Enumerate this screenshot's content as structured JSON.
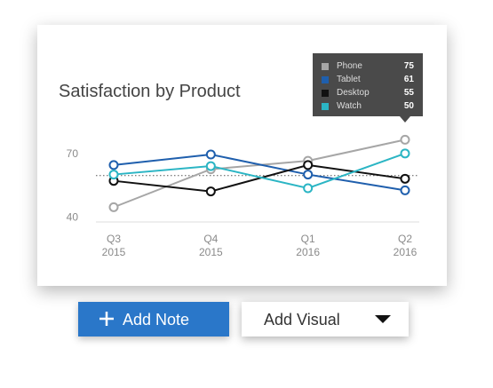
{
  "chart_data": {
    "type": "line",
    "title": "Satisfaction by Product",
    "categories": [
      "Q3\n2015",
      "Q4\n2015",
      "Q1\n2016",
      "Q2\n2016"
    ],
    "series": [
      {
        "name": "Phone",
        "color": "#a6a6a6",
        "values": [
          45,
          63,
          67,
          77
        ]
      },
      {
        "name": "Tablet",
        "color": "#1f5fad",
        "values": [
          65,
          70,
          60.5,
          53
        ]
      },
      {
        "name": "Desktop",
        "color": "#111111",
        "values": [
          57.5,
          52.5,
          65,
          58.5
        ]
      },
      {
        "name": "Watch",
        "color": "#2bb5c4",
        "values": [
          60.5,
          64.5,
          54,
          70.5
        ]
      }
    ],
    "ylim": [
      38,
      78
    ],
    "yticks": [
      40,
      70
    ],
    "reference_value": 60,
    "tooltip": {
      "items": [
        {
          "name": "Phone",
          "color": "#a6a6a6",
          "value": 75
        },
        {
          "name": "Tablet",
          "color": "#1f5fad",
          "value": 61
        },
        {
          "name": "Desktop",
          "color": "#111111",
          "value": 55
        },
        {
          "name": "Watch",
          "color": "#2bb5c4",
          "value": 50
        }
      ]
    }
  },
  "buttons": {
    "primary": "Add Note",
    "secondary": "Add Visual"
  }
}
